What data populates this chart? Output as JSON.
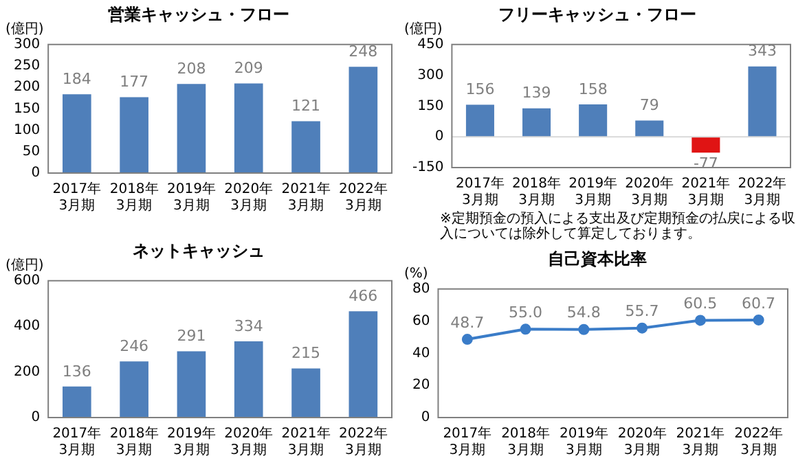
{
  "chart_data": [
    {
      "type": "bar",
      "title": "営業キャッシュ・フロー",
      "ylabel": "(億円)",
      "categories": [
        "2017年\n3月期",
        "2018年\n3月期",
        "2019年\n3月期",
        "2020年\n3月期",
        "2021年\n3月期",
        "2022年\n3月期"
      ],
      "values": [
        184,
        177,
        208,
        209,
        121,
        248
      ],
      "color": "#4f7fba",
      "ylim": [
        0,
        300
      ],
      "yticks": [
        0,
        50,
        100,
        150,
        200,
        250,
        300
      ],
      "grid": false,
      "legend": false,
      "data_labels": true
    },
    {
      "type": "bar",
      "title": "フリーキャッシュ・フロー",
      "ylabel": "(億円)",
      "categories": [
        "2017年\n3月期",
        "2018年\n3月期",
        "2019年\n3月期",
        "2020年\n3月期",
        "2021年\n3月期",
        "2022年\n3月期"
      ],
      "values": [
        156,
        139,
        158,
        79,
        -77,
        343
      ],
      "colors": [
        "#4f7fba",
        "#4f7fba",
        "#4f7fba",
        "#4f7fba",
        "#e01414",
        "#4f7fba"
      ],
      "ylim": [
        -150,
        450
      ],
      "yticks": [
        -150,
        0,
        150,
        300,
        450
      ],
      "grid": false,
      "legend": false,
      "data_labels": true,
      "ref_lines": [
        {
          "axis": "y",
          "value": 0,
          "color": "#d9d9d9"
        }
      ],
      "annotations": [
        "※定期預金の預入による支出及び定期預金の払戻による収入については除外して算定しております。"
      ]
    },
    {
      "type": "bar",
      "title": "ネットキャッシュ",
      "ylabel": "(億円)",
      "categories": [
        "2017年\n3月期",
        "2018年\n3月期",
        "2019年\n3月期",
        "2020年\n3月期",
        "2021年\n3月期",
        "2022年\n3月期"
      ],
      "values": [
        136,
        246,
        291,
        334,
        215,
        466
      ],
      "color": "#4f7fba",
      "ylim": [
        0,
        600
      ],
      "yticks": [
        0,
        200,
        400,
        600
      ],
      "grid": false,
      "legend": false,
      "data_labels": true
    },
    {
      "type": "line",
      "title": "自己資本比率",
      "ylabel": "(%)",
      "categories": [
        "2017年\n3月期",
        "2018年\n3月期",
        "2019年\n3月期",
        "2020年\n3月期",
        "2021年\n3月期",
        "2022年\n3月期"
      ],
      "values": [
        48.7,
        55.0,
        54.8,
        55.7,
        60.5,
        60.7
      ],
      "value_labels": [
        "48.7",
        "55.0",
        "54.8",
        "55.7",
        "60.5",
        "60.7"
      ],
      "color": "#3a7cc8",
      "ylim": [
        0,
        80
      ],
      "yticks": [
        0,
        20,
        40,
        60,
        80
      ],
      "grid": false,
      "legend": false,
      "marker": "circle",
      "line_style": "solid"
    }
  ]
}
